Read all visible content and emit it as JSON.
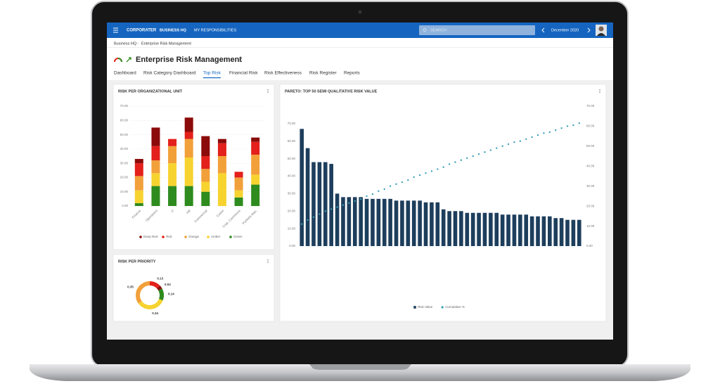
{
  "top_bar": {
    "logo": "CORPORATER",
    "nav": [
      "BUSINESS HQ",
      "MY RESPONSIBILITIES"
    ],
    "search_placeholder": "SEARCH",
    "period": "December 2020"
  },
  "breadcrumb": [
    "Business HQ",
    "Enterprise Risk Management"
  ],
  "page_title": "Enterprise Risk Management",
  "tabs": [
    "Dashboard",
    "Risk Category Dashboard",
    "Top Risk",
    "Financial Risk",
    "Risk Effectiveness",
    "Risk Register",
    "Reports"
  ],
  "active_tab": 2,
  "chart_data": [
    {
      "type": "bar",
      "stacked": true,
      "title": "RISK PER ORGANIZATIONAL UNIT",
      "categories": [
        "Finance",
        "Operations",
        "IT",
        "HR",
        "Commercial",
        "Custm",
        "Corp. Commerce",
        "Portfolio Man."
      ],
      "series": [
        {
          "name": "Green",
          "color": "#2e8b1e",
          "values": [
            2,
            14,
            14,
            14,
            10,
            0,
            6,
            15
          ]
        },
        {
          "name": "Amber",
          "color": "#f7d330",
          "values": [
            9,
            9,
            16,
            20,
            7,
            23,
            5,
            7
          ]
        },
        {
          "name": "Orange",
          "color": "#f2a03a",
          "values": [
            10,
            9,
            12,
            13,
            9,
            12,
            9,
            14
          ]
        },
        {
          "name": "Red",
          "color": "#e3201b",
          "values": [
            9,
            10,
            5,
            5,
            9,
            9,
            4,
            9
          ]
        },
        {
          "name": "Deep Red",
          "color": "#8b0a0a",
          "values": [
            3,
            13,
            0,
            10,
            14,
            3,
            0,
            3
          ]
        }
      ],
      "legend_order": [
        4,
        3,
        2,
        1,
        0
      ],
      "ylim": [
        0,
        70
      ],
      "yticks": [
        {
          "value": 0,
          "label": "0.00"
        },
        {
          "value": 10,
          "label": "10.00"
        },
        {
          "value": 20,
          "label": "20.00"
        },
        {
          "value": 30,
          "label": "30.00"
        },
        {
          "value": 40,
          "label": "40.00"
        },
        {
          "value": 50,
          "label": "50.00"
        },
        {
          "value": 60,
          "label": "60.00"
        },
        {
          "value": 70,
          "label": "70.00"
        }
      ],
      "grid": true
    },
    {
      "type": "pie",
      "donut": true,
      "title": "RISK PER PRIORITY",
      "values": [
        0.13,
        0.04,
        0.14,
        0.34,
        0.35
      ],
      "colors": [
        "#e3201b",
        "#8b0a0a",
        "#2e8b1e",
        "#f7d330",
        "#f2a03a"
      ]
    },
    {
      "type": "pareto",
      "title": "PARETO: TOP 50 SEMI QUALITATIVE RISK VALUE",
      "categories": [
        null,
        null,
        null,
        null,
        null,
        null,
        null,
        null,
        null,
        null,
        null,
        null,
        null,
        null,
        null,
        null,
        null,
        null,
        null,
        null,
        null,
        null,
        null,
        null,
        null,
        null,
        null,
        null,
        null,
        null,
        null,
        null,
        null,
        null,
        null,
        null,
        null,
        null,
        null,
        null,
        null,
        null,
        null,
        null,
        null,
        null,
        null,
        null
      ],
      "series": [
        {
          "name": "Risk Value",
          "color": "#1d3e5c",
          "values": [
            67,
            56,
            48,
            48,
            48,
            47,
            30,
            28,
            28,
            28,
            28,
            27,
            27,
            27,
            27,
            27,
            26,
            26,
            26,
            26,
            26,
            25,
            25,
            25,
            21,
            20,
            20,
            20,
            19,
            19,
            19,
            19,
            19,
            19,
            18,
            18,
            18,
            18,
            18,
            17,
            17,
            17,
            17,
            16,
            16,
            15,
            15,
            15
          ]
        },
        {
          "name": "Cumulative %",
          "color": "#3aa0b5",
          "axis": "y2",
          "values": [
            11,
            13,
            14.5,
            16,
            17.5,
            18.5,
            19.5,
            20.5,
            21.5,
            22.5,
            23.5,
            25,
            26,
            27.5,
            28.5,
            30,
            31,
            32,
            33,
            34.5,
            35.5,
            36.5,
            37.5,
            38.5,
            39.5,
            41,
            42,
            43,
            44,
            45,
            46,
            47,
            48,
            49,
            50,
            51,
            52,
            52.5,
            53.5,
            54.5,
            55.5,
            56.5,
            57,
            58,
            59,
            60,
            60.5,
            61.5
          ]
        }
      ],
      "ylim": [
        0,
        80
      ],
      "yticks": [
        {
          "value": 0,
          "label": "0.00"
        },
        {
          "value": 10,
          "label": "10.00"
        },
        {
          "value": 20,
          "label": "20.00"
        },
        {
          "value": 30,
          "label": "30.00"
        },
        {
          "value": 40,
          "label": "40.00"
        },
        {
          "value": 50,
          "label": "50.00"
        },
        {
          "value": 60,
          "label": "60.00"
        },
        {
          "value": 70,
          "label": "70.00"
        }
      ],
      "y2lim": [
        0,
        70
      ],
      "y2ticks": [
        {
          "value": 0,
          "label": "0.00"
        },
        {
          "value": 10,
          "label": "10.00"
        },
        {
          "value": 20,
          "label": "20.00"
        },
        {
          "value": 30,
          "label": "30.00"
        },
        {
          "value": 40,
          "label": "40.00"
        },
        {
          "value": 50,
          "label": "50.00"
        },
        {
          "value": 60,
          "label": "60.00"
        },
        {
          "value": 70,
          "label": "70.00"
        }
      ],
      "grid": false
    }
  ]
}
